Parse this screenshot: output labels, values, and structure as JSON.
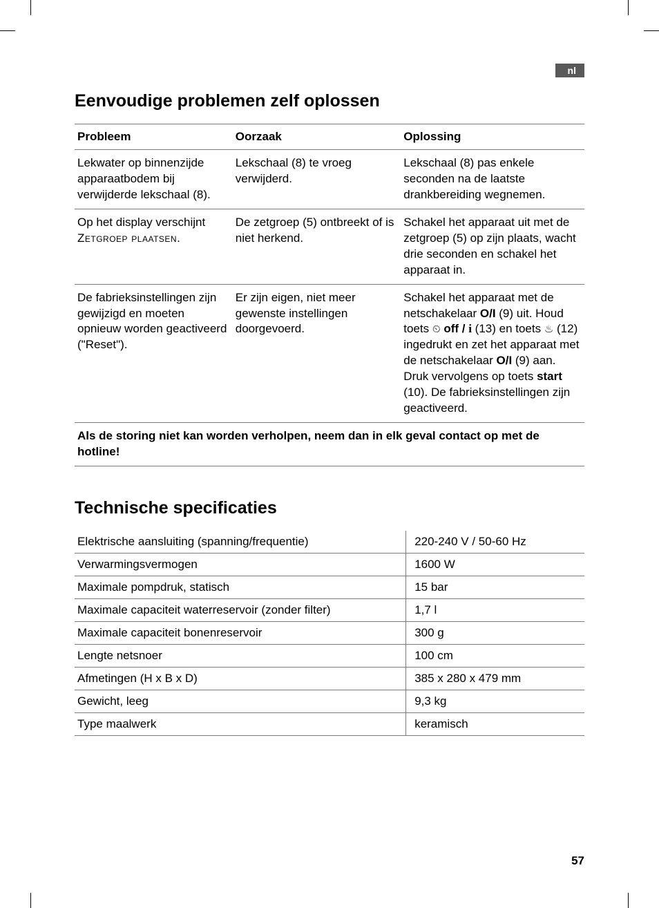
{
  "lang_badge": "nl",
  "heading1": "Eenvoudige problemen zelf oplossen",
  "heading2": "Technische specificaties",
  "page_number": "57",
  "troubleshoot": {
    "headers": {
      "problem": "Probleem",
      "cause": "Oorzaak",
      "solution": "Oplossing"
    },
    "rows": [
      {
        "problem": "Lekwater op binnenzijde apparaatbodem bij verwijderde lekschaal (8).",
        "cause": "Lekschaal (8) te vroeg verwijderd.",
        "solution": "Lekschaal (8) pas enkele seconden na de laatste drankbereiding wegnemen."
      },
      {
        "problem_line1": "Op het display verschijnt",
        "problem_line2": "Zetgroep plaatsen",
        "problem_line2_suffix": ".",
        "cause": "De zetgroep (5) ontbreekt of is niet herkend.",
        "solution": "Schakel het apparaat uit met de zetgroep (5) op zijn plaats, wacht drie seconden en schakel het apparaat in."
      },
      {
        "problem": "De fabrieksinstellingen zijn gewijzigd en moeten opnieuw worden geactiveerd (\"Reset\").",
        "cause": "Er zijn eigen, niet meer gewenste instellingen doorgevoerd.",
        "solution_p1": "Schakel het apparaat met de netschakelaar ",
        "solution_b1": "O/I",
        "solution_p2": " (9) uit. Houd toets ",
        "solution_icon1": "⏲",
        "solution_b2": " off / ",
        "solution_info_i": "i",
        "solution_p3": " (13) en toets ",
        "solution_icon2": "♨",
        "solution_p4": " (12) ingedrukt en zet het apparaat met de netschakelaar ",
        "solution_b3": "O/I",
        "solution_p5": " (9) aan. Druk vervolgens op toets ",
        "solution_b4": "start",
        "solution_p6": " (10). De fabrieksinstellingen zijn geactiveerd."
      }
    ],
    "footer": "Als de storing niet kan worden verholpen, neem dan in elk geval contact op met de hotline!"
  },
  "specs": {
    "rows": [
      {
        "label": "Elektrische aansluiting (spanning/frequentie)",
        "value": "220-240 V / 50-60 Hz"
      },
      {
        "label": "Verwarmingsvermogen",
        "value": "1600 W"
      },
      {
        "label": "Maximale pompdruk, statisch",
        "value": "15 bar"
      },
      {
        "label": "Maximale capaciteit waterreservoir (zonder filter)",
        "value": "1,7 l"
      },
      {
        "label": "Maximale capaciteit bonenreservoir",
        "value": "300 g"
      },
      {
        "label": "Lengte netsnoer",
        "value": "100 cm"
      },
      {
        "label": "Afmetingen (H x B x D)",
        "value": "385 x 280 x 479 mm"
      },
      {
        "label": "Gewicht, leeg",
        "value": "9,3 kg"
      },
      {
        "label": "Type maalwerk",
        "value": "keramisch"
      }
    ]
  }
}
